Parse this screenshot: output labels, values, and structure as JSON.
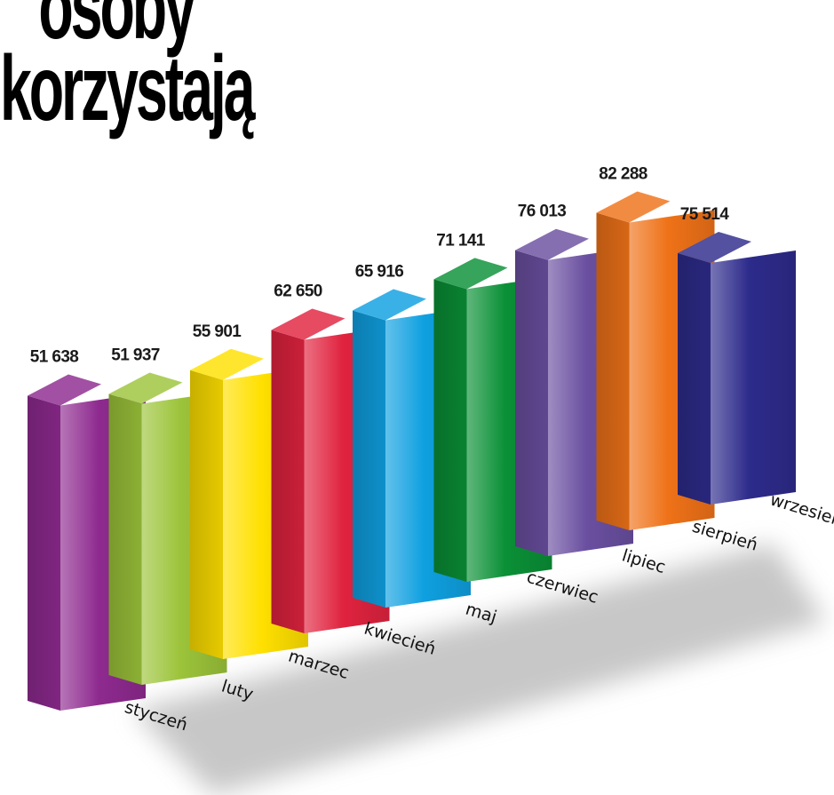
{
  "title_lines": [
    "osoby",
    "korzystają"
  ],
  "chart_data": {
    "type": "bar",
    "title": "",
    "xlabel": "",
    "ylabel": "",
    "categories": [
      "styczeń",
      "luty",
      "marzec",
      "kwiecień",
      "maj",
      "czerwiec",
      "lipiec",
      "sierpień",
      "wrzesień"
    ],
    "values": [
      51638,
      51937,
      55901,
      62650,
      65916,
      71141,
      76013,
      82288,
      75514
    ],
    "value_labels": [
      "51 638",
      "51 937",
      "55 901",
      "62 650",
      "65 916",
      "71 141",
      "76 013",
      "82 288",
      "75 514"
    ],
    "colors": [
      "#8e2a8f",
      "#9cc43a",
      "#ffe000",
      "#e0233f",
      "#0fa0e0",
      "#0a9036",
      "#6a4fa0",
      "#ef7218",
      "#2d2b8b"
    ],
    "style": "3d-bars",
    "grid": false,
    "legend": "none"
  }
}
